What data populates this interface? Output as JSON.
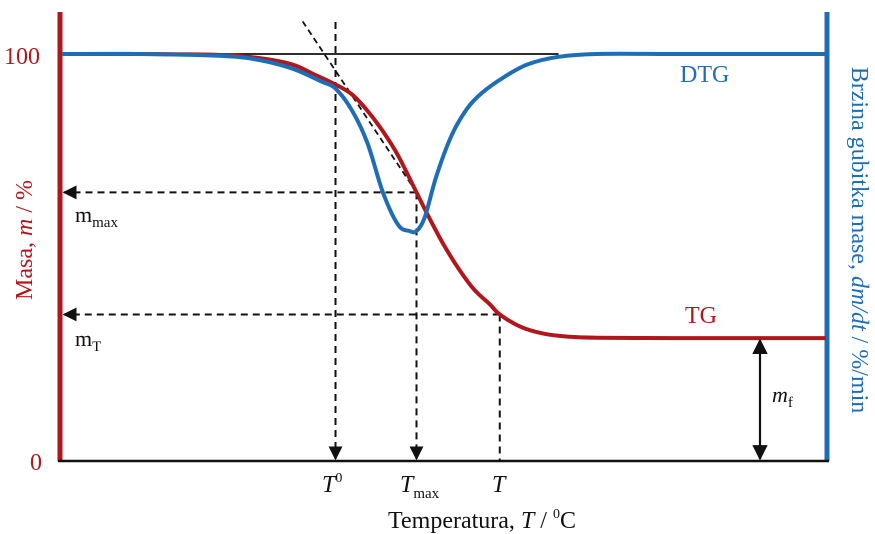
{
  "chart_data": {
    "type": "line",
    "title": "",
    "xlabel": {
      "prefix": "Temperatura, ",
      "var": "T",
      "unit_sep": " / ",
      "unit_sup": "0",
      "unit": "C"
    },
    "y_left_label": {
      "text": "Masa, ",
      "var": "m",
      "unit": " / %"
    },
    "y_right_label": {
      "text": "Brzina gubitka mase, ",
      "var": "dm/dt",
      "unit": " / %/min"
    },
    "y_left_ticks": [
      "100",
      "0"
    ],
    "y_left_range": [
      0,
      100
    ],
    "x_range": [
      0,
      100
    ],
    "x_ticks": [
      {
        "var": "T",
        "sup": "0",
        "sub": "",
        "value": 35.8
      },
      {
        "var": "T",
        "sup": "",
        "sub": "max",
        "value": 46.4
      },
      {
        "var": "T",
        "sup": "",
        "sub": "",
        "value": 57.3
      }
    ],
    "series": [
      {
        "name": "TG",
        "color": "#b0171c",
        "x": [
          0,
          10,
          20,
          25,
          30,
          33,
          35.8,
          38,
          40,
          42,
          44,
          46.4,
          48,
          50,
          52,
          54,
          56,
          57.3,
          60,
          63,
          66,
          70,
          80,
          90,
          100
        ],
        "y": [
          100,
          100,
          99.8,
          99.2,
          97.5,
          95,
          92.5,
          90,
          86,
          81,
          75,
          66,
          60,
          53,
          47,
          42,
          38.5,
          36,
          33,
          31.3,
          30.6,
          30.3,
          30.2,
          30.2,
          30.2
        ]
      },
      {
        "name": "DTG",
        "color": "#1f6db4",
        "x": [
          0,
          10,
          20,
          25,
          30,
          34,
          35.8,
          38,
          40,
          42,
          44,
          45.5,
          46.4,
          47.5,
          49,
          51,
          53,
          55,
          58,
          61,
          65,
          70,
          80,
          90,
          100
        ],
        "y": [
          100,
          100,
          99.6,
          98.8,
          96.5,
          93.2,
          91.5,
          86,
          78,
          66,
          58,
          56.5,
          56.5,
          60,
          70,
          80,
          86.5,
          90.5,
          94.5,
          97.5,
          99.3,
          100,
          100,
          100,
          100
        ]
      }
    ],
    "annotations": {
      "m_max": {
        "text": "m",
        "sub": "max",
        "value": 66
      },
      "m_T": {
        "text": "m",
        "sub": "T",
        "value": 36
      },
      "m_f": {
        "text": "m",
        "sub": "f"
      },
      "tangent_line": {
        "x1": 31.5,
        "y1": 108,
        "x2": 46.4,
        "y2": 66
      },
      "baseline_100": {
        "x_end": 65
      }
    },
    "grid": false,
    "legend": "inline labels"
  }
}
